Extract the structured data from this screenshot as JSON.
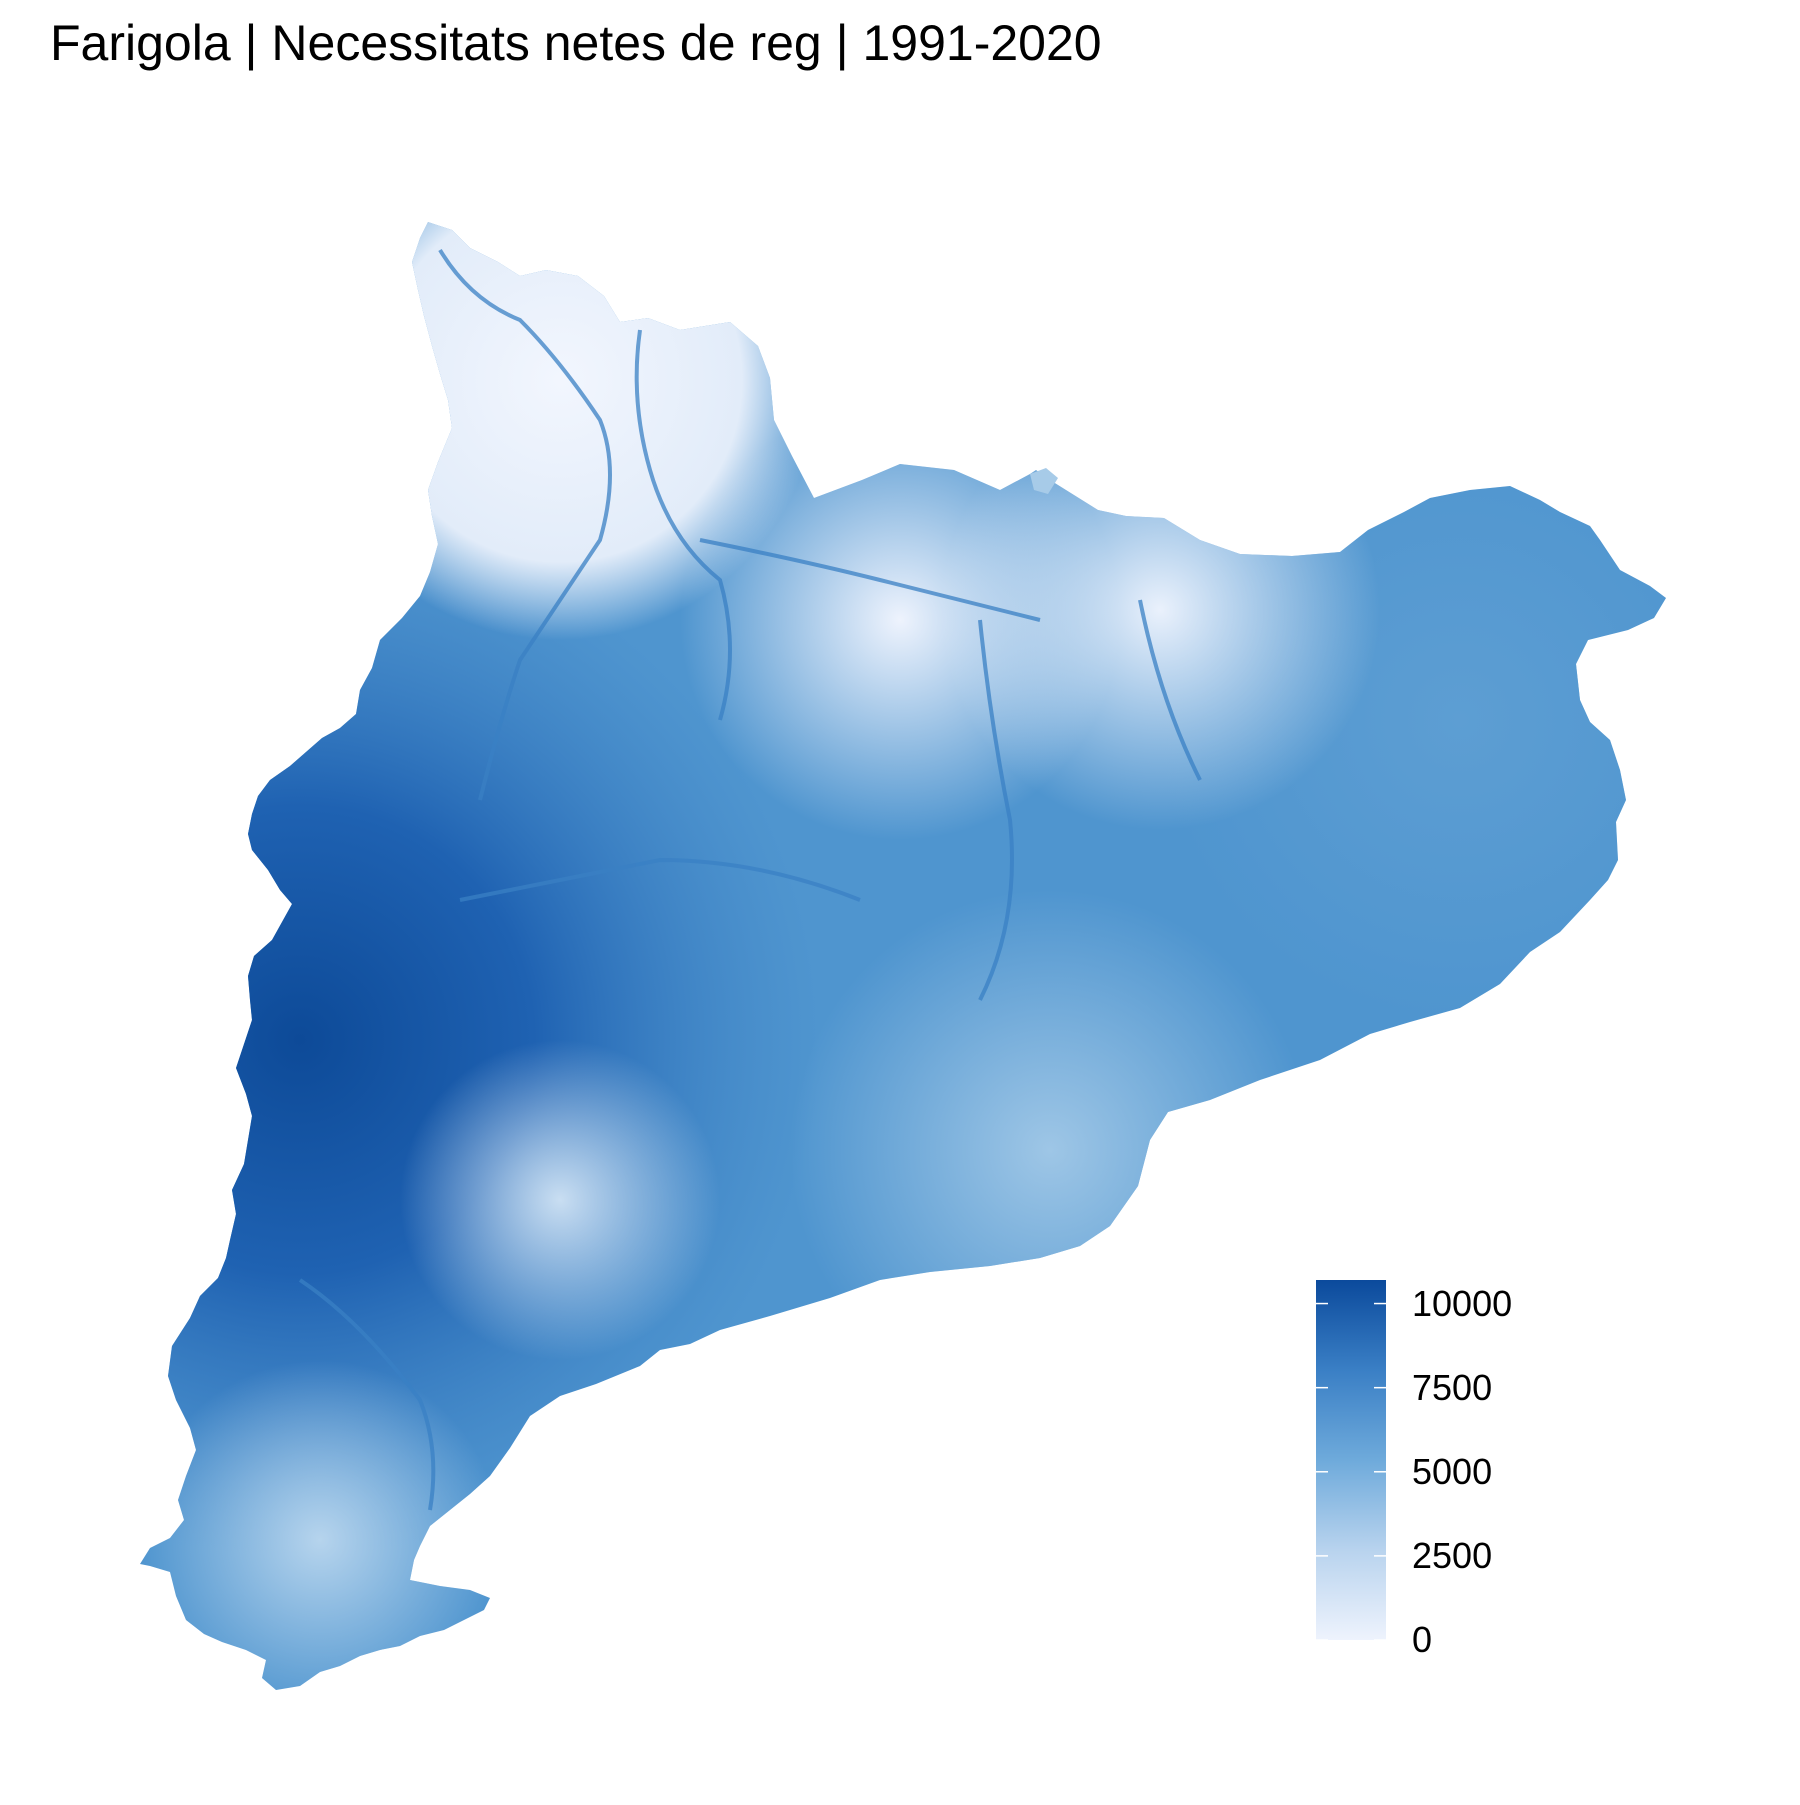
{
  "title": "Farigola | Necessitats netes de reg | 1991-2020",
  "legend": {
    "ticks": [
      "0",
      "2500",
      "5000",
      "7500",
      "10000"
    ],
    "tick_values": [
      0,
      2500,
      5000,
      7500,
      10000
    ],
    "max_value": 10700,
    "color_low": "#eef3fd",
    "color_high": "#0b4a9c"
  },
  "colors": {
    "pale": "#eef3fd",
    "light": "#a7cbe8",
    "mid": "#5a9fd3",
    "strong": "#3b80c4",
    "dark": "#1d62b0"
  }
}
